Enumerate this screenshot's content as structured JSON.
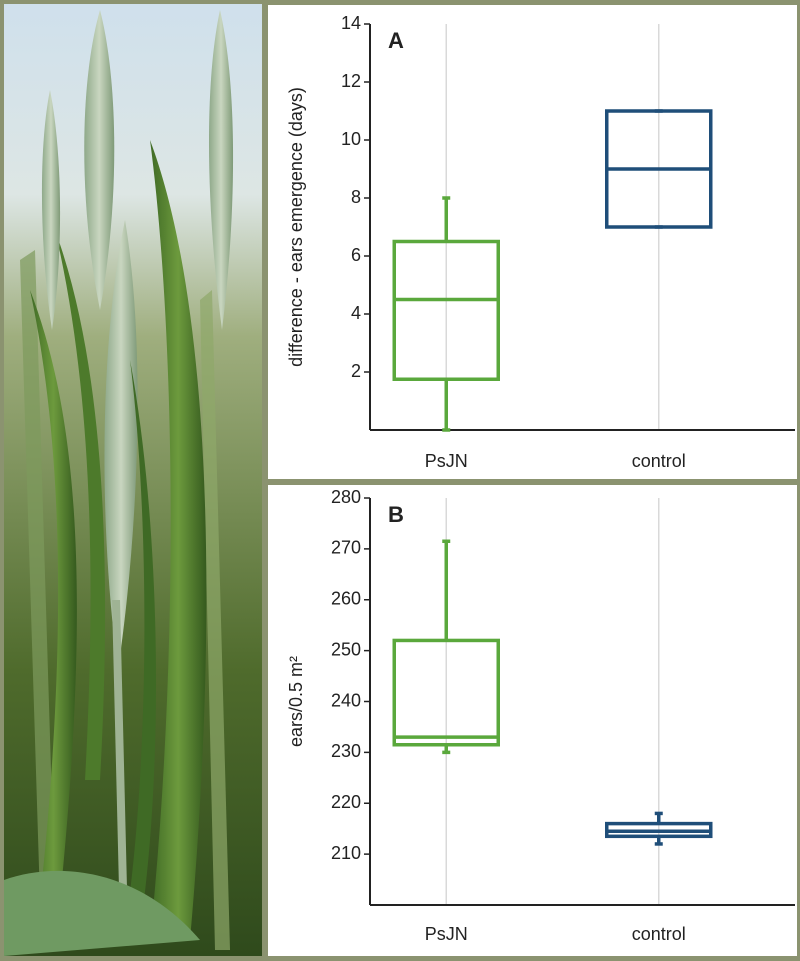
{
  "chart_data": [
    {
      "type": "box",
      "label": "A",
      "ylabel": "difference - ears emergence (days)",
      "categories": [
        "PsJN",
        "control"
      ],
      "colors": [
        "#5aa83c",
        "#1f4e79"
      ],
      "min": [
        0,
        7
      ],
      "q1": [
        1.75,
        7
      ],
      "median": [
        4.5,
        9
      ],
      "q3": [
        6.5,
        11
      ],
      "max": [
        8,
        11
      ],
      "ylim": [
        0,
        14
      ],
      "yticks": [
        2,
        4,
        6,
        8,
        10,
        12,
        14
      ],
      "grid": true
    },
    {
      "type": "box",
      "label": "B",
      "ylabel": "ears/0.5 m²",
      "categories": [
        "PsJN",
        "control"
      ],
      "colors": [
        "#5aa83c",
        "#1f4e79"
      ],
      "min": [
        230,
        212
      ],
      "q1": [
        231.5,
        213.5
      ],
      "median": [
        233,
        214.5
      ],
      "q3": [
        252,
        216
      ],
      "max": [
        271.5,
        218
      ],
      "ylim": [
        200,
        280
      ],
      "yticks": [
        210,
        220,
        230,
        240,
        250,
        260,
        270,
        280
      ],
      "grid": true
    }
  ]
}
